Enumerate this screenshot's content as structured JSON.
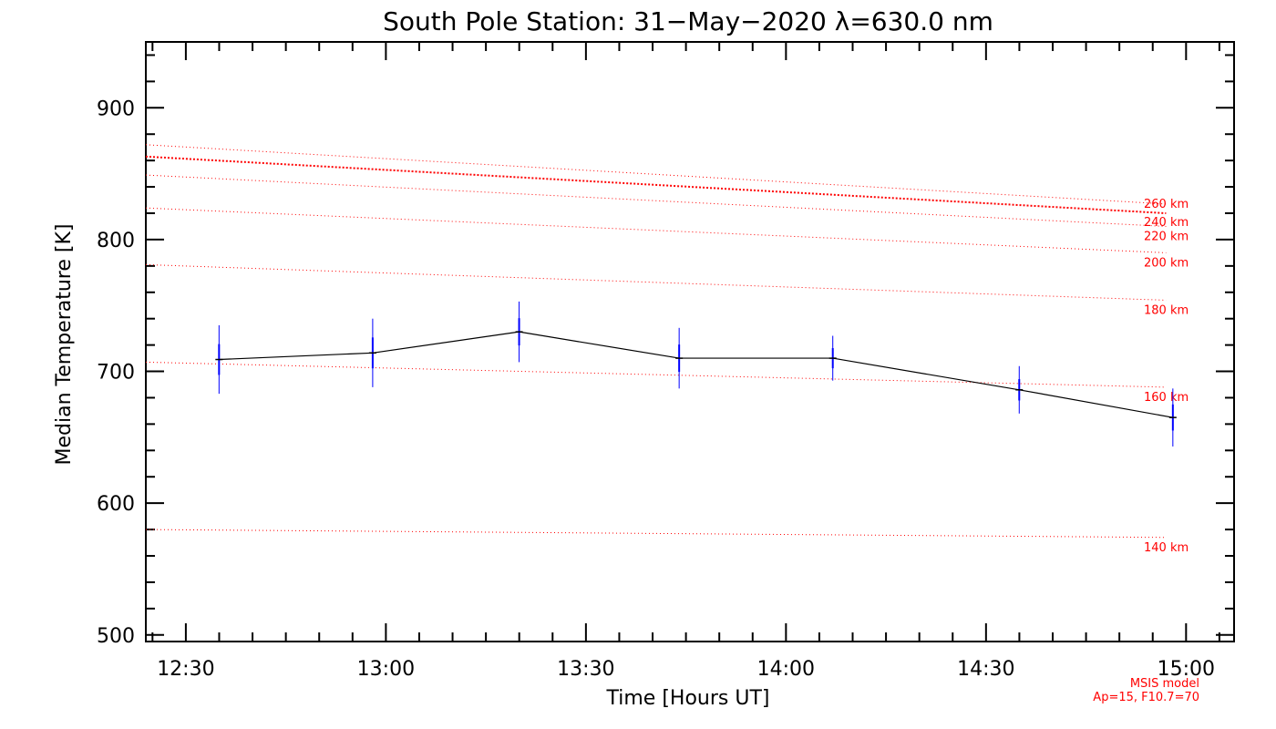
{
  "chart_data": {
    "type": "line",
    "title": "South Pole Station: 31−May−2020 λ=630.0 nm",
    "xlabel": "Time [Hours UT]",
    "ylabel": "Median Temperature [K]",
    "xlim": [
      12.4,
      15.12
    ],
    "ylim": [
      495,
      950
    ],
    "x_ticks": [
      {
        "value": 12.5,
        "label": "12:30"
      },
      {
        "value": 13.0,
        "label": "13:00"
      },
      {
        "value": 13.5,
        "label": "13:30"
      },
      {
        "value": 14.0,
        "label": "14:00"
      },
      {
        "value": 14.5,
        "label": "14:30"
      },
      {
        "value": 15.0,
        "label": "15:00"
      }
    ],
    "y_ticks": [
      500,
      600,
      700,
      800,
      900
    ],
    "series": [
      {
        "name": "Median Temperature",
        "color": "#000000",
        "error_color": "#0000ff",
        "x": [
          12.583,
          12.967,
          13.333,
          13.733,
          14.117,
          14.583,
          14.967
        ],
        "y": [
          709,
          714,
          730,
          710,
          710,
          686,
          665
        ],
        "err": [
          26,
          26,
          23,
          23,
          17,
          18,
          22
        ]
      }
    ],
    "msis_lines": {
      "color": "#ff0000",
      "x_start": 12.4,
      "x_end": 14.95,
      "lines": [
        {
          "label": "140 km",
          "y_start": 580,
          "y_end": 574
        },
        {
          "label": "160 km",
          "y_start": 707,
          "y_end": 688
        },
        {
          "label": "180 km",
          "y_start": 781,
          "y_end": 754
        },
        {
          "label": "200 km",
          "y_start": 824,
          "y_end": 790
        },
        {
          "label": "220 km",
          "y_start": 849,
          "y_end": 810
        },
        {
          "label": "240 km",
          "y_start": 863,
          "y_end": 820
        },
        {
          "label": "260 km",
          "y_start": 872,
          "y_end": 827
        }
      ]
    },
    "footnote": [
      "MSIS model",
      "Ap=15, F10.7=70"
    ],
    "footnote_color": "#ff0000"
  }
}
